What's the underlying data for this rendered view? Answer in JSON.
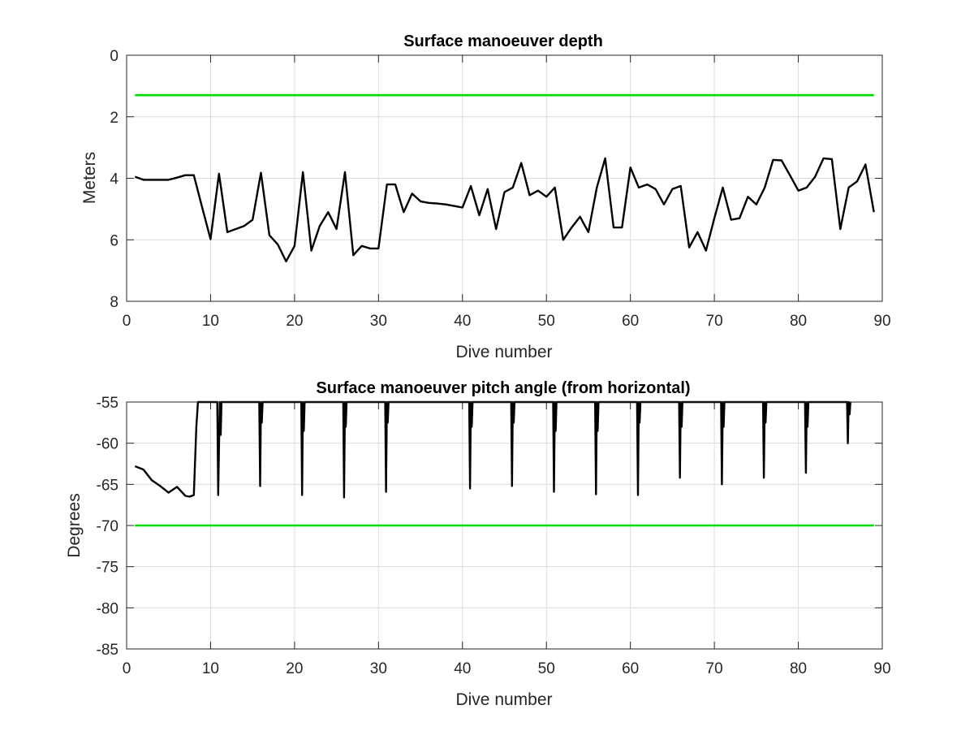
{
  "chart_data": [
    {
      "type": "line",
      "title": "Surface manoeuver depth",
      "xlabel": "Dive number",
      "ylabel": "Meters",
      "xlim": [
        0,
        90
      ],
      "ylim": [
        0,
        8
      ],
      "y_reversed": true,
      "grid": true,
      "xticks": [
        0,
        10,
        20,
        30,
        40,
        50,
        60,
        70,
        80,
        90
      ],
      "yticks": [
        0,
        2,
        4,
        6,
        8
      ],
      "colors": {
        "data": "#000000",
        "threshold": "#00dd00"
      },
      "series": [
        {
          "x": [
            1,
            2,
            3,
            4,
            5,
            6,
            7,
            8,
            9,
            10,
            11,
            12,
            13,
            14,
            15,
            16,
            17,
            18,
            19,
            20,
            21,
            22,
            23,
            24,
            25,
            26,
            27,
            28,
            29,
            30,
            31,
            32,
            33,
            34,
            35,
            36,
            37,
            38,
            39,
            40,
            41,
            42,
            43,
            44,
            45,
            46,
            47,
            48,
            49,
            50,
            51,
            52,
            53,
            54,
            55,
            56,
            57,
            58,
            59,
            60,
            61,
            62,
            63,
            64,
            65,
            66,
            67,
            68,
            69,
            70,
            71,
            72,
            73,
            74,
            75,
            76,
            77,
            78,
            79,
            80,
            81,
            82,
            83,
            84,
            85,
            86,
            87,
            88,
            89
          ],
          "y": [
            3.95,
            4.05,
            4.05,
            4.05,
            4.05,
            3.98,
            3.9,
            3.9,
            4.95,
            5.98,
            3.85,
            5.75,
            5.65,
            5.55,
            5.35,
            3.82,
            5.85,
            6.15,
            6.7,
            6.2,
            3.8,
            6.35,
            5.55,
            5.1,
            5.65,
            3.8,
            6.5,
            6.2,
            6.28,
            6.28,
            4.2,
            4.2,
            5.1,
            4.5,
            4.75,
            4.8,
            4.82,
            4.85,
            4.9,
            4.95,
            4.25,
            5.2,
            4.35,
            5.65,
            4.45,
            4.3,
            3.5,
            4.55,
            4.4,
            4.6,
            4.3,
            6.0,
            5.6,
            5.25,
            5.75,
            4.3,
            3.35,
            5.6,
            5.6,
            3.65,
            4.3,
            4.2,
            4.35,
            4.85,
            4.35,
            4.25,
            6.25,
            5.75,
            6.35,
            5.3,
            4.3,
            5.35,
            5.3,
            4.6,
            4.85,
            4.3,
            3.4,
            3.42,
            3.9,
            4.4,
            4.3,
            3.95,
            3.35,
            3.38,
            5.65,
            4.3,
            4.1,
            3.55,
            5.1
          ]
        },
        {
          "x": [
            1,
            89
          ],
          "y": [
            1.3,
            1.3
          ]
        }
      ]
    },
    {
      "type": "line",
      "title": "Surface manoeuver pitch angle (from horizontal)",
      "xlabel": "Dive number",
      "ylabel": "Degrees",
      "xlim": [
        0,
        90
      ],
      "ylim": [
        -85,
        -55
      ],
      "grid": true,
      "xticks": [
        0,
        10,
        20,
        30,
        40,
        50,
        60,
        70,
        80,
        90
      ],
      "yticks": [
        -55,
        -60,
        -65,
        -70,
        -75,
        -80,
        -85
      ],
      "colors": {
        "data": "#000000",
        "threshold": "#00dd00"
      },
      "series": [
        {
          "x": [
            1,
            2,
            3,
            4,
            5,
            6,
            7,
            7.5,
            8,
            8.3,
            8.5,
            10.8,
            10.9,
            11.1,
            11.2,
            11.3,
            15.8,
            15.9,
            16.0,
            16.1,
            16.2,
            20.8,
            20.9,
            21.0,
            21.1,
            21.2,
            25.8,
            25.9,
            26.0,
            26.1,
            26.2,
            30.8,
            30.9,
            31.0,
            31.1,
            31.2,
            40.8,
            40.9,
            41.0,
            41.1,
            41.2,
            45.8,
            45.9,
            46.0,
            46.1,
            46.2,
            50.8,
            50.9,
            51.0,
            51.1,
            51.2,
            55.8,
            55.9,
            56.0,
            56.1,
            56.2,
            60.8,
            60.9,
            61.0,
            61.1,
            61.2,
            65.8,
            65.9,
            66.0,
            66.1,
            66.2,
            70.8,
            70.9,
            71.0,
            71.1,
            71.2,
            75.8,
            75.9,
            76.0,
            76.1,
            76.2,
            80.8,
            80.9,
            81.0,
            81.1,
            81.2,
            85.8,
            85.9,
            86.0,
            86.1,
            86.2
          ],
          "y": [
            -62.8,
            -63.2,
            -64.5,
            -65.2,
            -66.0,
            -65.3,
            -66.4,
            -66.5,
            -66.3,
            -58.0,
            -55.0,
            -55.0,
            -66.3,
            -55.0,
            -59.0,
            -55.0,
            -55.0,
            -65.2,
            -55.0,
            -57.5,
            -55.0,
            -55.0,
            -66.3,
            -55.0,
            -58.5,
            -55.0,
            -55.0,
            -66.6,
            -55.0,
            -58.0,
            -55.0,
            -55.0,
            -65.9,
            -55.0,
            -57.5,
            -55.0,
            -55.0,
            -65.5,
            -55.0,
            -58.0,
            -55.0,
            -55.0,
            -65.2,
            -55.0,
            -57.5,
            -55.0,
            -55.0,
            -65.9,
            -55.0,
            -58.5,
            -55.0,
            -55.0,
            -66.2,
            -55.0,
            -58.5,
            -55.0,
            -55.0,
            -66.3,
            -55.0,
            -57.5,
            -55.0,
            -55.0,
            -64.2,
            -55.0,
            -58.0,
            -55.0,
            -55.0,
            -65.0,
            -55.0,
            -58.0,
            -55.0,
            -55.0,
            -64.2,
            -55.0,
            -57.5,
            -55.0,
            -55.0,
            -63.6,
            -55.0,
            -58.0,
            -55.0,
            -55.0,
            -60.0,
            -55.0,
            -56.5,
            -55.0
          ]
        },
        {
          "x": [
            1,
            89
          ],
          "y": [
            -70,
            -70
          ]
        }
      ]
    }
  ]
}
